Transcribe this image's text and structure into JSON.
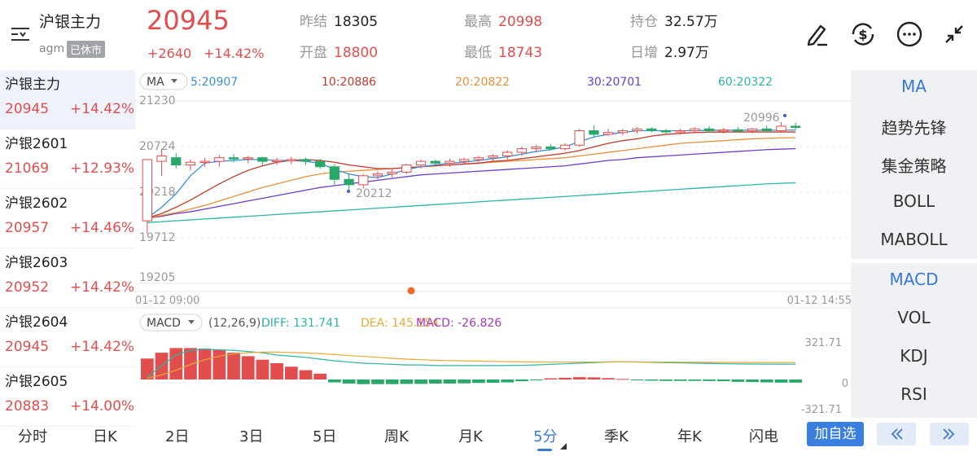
{
  "header": {
    "name": "沪银主力",
    "code": "agm",
    "status": "已休市",
    "price": "20945",
    "change": "+2640",
    "change_pct": "+14.42%",
    "prev_settle_label": "昨结",
    "prev_settle": "18305",
    "open_label": "开盘",
    "open": "18800",
    "high_label": "最高",
    "high": "20998",
    "low_label": "最低",
    "low": "18743",
    "oi_label": "持仓",
    "oi": "32.57万",
    "daily_inc_label": "日增",
    "daily_inc": "2.97万",
    "icons": [
      "edit-pen-icon",
      "currency-exchange-icon",
      "more-dots-icon",
      "collapse-arrows-icon"
    ]
  },
  "contracts": [
    {
      "name": "沪银主力",
      "price": "20945",
      "pct": "+14.42%"
    },
    {
      "name": "沪银2601",
      "price": "21069",
      "pct": "+12.93%"
    },
    {
      "name": "沪银2602",
      "price": "20957",
      "pct": "+14.46%"
    },
    {
      "name": "沪银2603",
      "price": "20952",
      "pct": "+14.42%"
    },
    {
      "name": "沪银2604",
      "price": "20945",
      "pct": "+14.42%"
    },
    {
      "name": "沪银2605",
      "price": "20883",
      "pct": "+14.00%"
    }
  ],
  "indicators": {
    "main": [
      "MA",
      "趋势先锋",
      "集金策略",
      "BOLL",
      "MABOLL"
    ],
    "sub": [
      "MACD",
      "VOL",
      "KDJ",
      "RSI"
    ]
  },
  "tabs": [
    "分时",
    "日K",
    "2日",
    "3日",
    "5日",
    "周K",
    "月K",
    "5分",
    "季K",
    "年K",
    "闪电"
  ],
  "selected_tab": "5分",
  "add_watch": "加自选",
  "nav": {
    "prev": "<<",
    "next": ">>"
  },
  "colors": {
    "up": "#e24d4d",
    "down": "#2aa76a",
    "accent": "#3a78d6",
    "ma5": "#3a8fd6",
    "ma10": "#c0392b",
    "ma20": "#e8903a",
    "ma30": "#6a3fc9",
    "ma60": "#2bb5a5",
    "dea": "#e8a93a",
    "macd": "#a03ac0"
  },
  "chart_data": {
    "type": "candlestick",
    "main": {
      "ma_selector": "MA",
      "ma_labels": [
        "5:20907",
        "10:20886",
        "20:20822",
        "30:20701",
        "60:20322"
      ],
      "y_ticks": [
        "21230",
        "20724",
        "20218",
        "19712",
        "19205"
      ],
      "ylim": [
        19205,
        21230
      ],
      "x_labels": [
        "01-12 09:00",
        "01-12 14:55"
      ],
      "max_label": "20996",
      "min_label": "20212",
      "candles": [
        [
          19900,
          20580,
          19760,
          20580
        ],
        [
          20560,
          20700,
          20400,
          20620
        ],
        [
          20600,
          20650,
          20480,
          20520
        ],
        [
          20520,
          20580,
          20460,
          20550
        ],
        [
          20550,
          20600,
          20500,
          20560
        ],
        [
          20560,
          20630,
          20500,
          20600
        ],
        [
          20600,
          20640,
          20550,
          20590
        ],
        [
          20590,
          20620,
          20540,
          20600
        ],
        [
          20600,
          20610,
          20520,
          20560
        ],
        [
          20560,
          20600,
          20520,
          20570
        ],
        [
          20570,
          20610,
          20530,
          20580
        ],
        [
          20580,
          20600,
          20520,
          20560
        ],
        [
          20560,
          20590,
          20480,
          20500
        ],
        [
          20500,
          20530,
          20300,
          20360
        ],
        [
          20360,
          20420,
          20212,
          20300
        ],
        [
          20300,
          20420,
          20260,
          20400
        ],
        [
          20400,
          20450,
          20360,
          20420
        ],
        [
          20420,
          20480,
          20380,
          20440
        ],
        [
          20440,
          20530,
          20420,
          20520
        ],
        [
          20520,
          20580,
          20480,
          20560
        ],
        [
          20560,
          20580,
          20520,
          20540
        ],
        [
          20540,
          20590,
          20500,
          20560
        ],
        [
          20560,
          20600,
          20530,
          20580
        ],
        [
          20580,
          20620,
          20550,
          20600
        ],
        [
          20600,
          20640,
          20560,
          20620
        ],
        [
          20620,
          20680,
          20580,
          20660
        ],
        [
          20660,
          20720,
          20620,
          20700
        ],
        [
          20700,
          20740,
          20660,
          20720
        ],
        [
          20720,
          20750,
          20680,
          20700
        ],
        [
          20700,
          20760,
          20680,
          20740
        ],
        [
          20740,
          20920,
          20720,
          20900
        ],
        [
          20900,
          20960,
          20820,
          20860
        ],
        [
          20860,
          20920,
          20840,
          20880
        ],
        [
          20880,
          20920,
          20850,
          20900
        ],
        [
          20900,
          20940,
          20870,
          20920
        ],
        [
          20920,
          20940,
          20880,
          20900
        ],
        [
          20900,
          20920,
          20870,
          20890
        ],
        [
          20890,
          20920,
          20860,
          20900
        ],
        [
          20900,
          20940,
          20870,
          20920
        ],
        [
          20920,
          20950,
          20880,
          20900
        ],
        [
          20900,
          20930,
          20870,
          20910
        ],
        [
          20910,
          20940,
          20880,
          20900
        ],
        [
          20900,
          20930,
          20870,
          20920
        ],
        [
          20920,
          20960,
          20880,
          20900
        ],
        [
          20900,
          20996,
          20880,
          20950
        ],
        [
          20950,
          20990,
          20910,
          20945
        ]
      ],
      "ma5": [
        19930,
        20050,
        20200,
        20400,
        20540,
        20560,
        20570,
        20580,
        20580,
        20570,
        20570,
        20560,
        20540,
        20470,
        20420,
        20390,
        20380,
        20420,
        20470,
        20500,
        20520,
        20540,
        20550,
        20570,
        20590,
        20610,
        20640,
        20670,
        20690,
        20720,
        20780,
        20830,
        20860,
        20880,
        20900,
        20900,
        20900,
        20900,
        20900,
        20905,
        20905,
        20905,
        20905,
        20906,
        20906,
        20907
      ],
      "ma10": [
        19930,
        19980,
        20050,
        20130,
        20220,
        20310,
        20390,
        20460,
        20510,
        20550,
        20570,
        20580,
        20570,
        20550,
        20520,
        20500,
        20480,
        20480,
        20490,
        20500,
        20510,
        20520,
        20530,
        20540,
        20560,
        20570,
        20590,
        20610,
        20630,
        20650,
        20680,
        20720,
        20760,
        20790,
        20810,
        20840,
        20860,
        20870,
        20880,
        20885,
        20885,
        20886,
        20886,
        20886,
        20886,
        20886
      ],
      "ma20": [
        19930,
        19960,
        19990,
        20030,
        20070,
        20120,
        20170,
        20220,
        20270,
        20310,
        20350,
        20390,
        20420,
        20440,
        20450,
        20460,
        20470,
        20480,
        20490,
        20500,
        20510,
        20520,
        20530,
        20540,
        20550,
        20560,
        20570,
        20580,
        20590,
        20600,
        20620,
        20640,
        20660,
        20680,
        20700,
        20720,
        20740,
        20760,
        20770,
        20780,
        20790,
        20800,
        20810,
        20815,
        20820,
        20822
      ],
      "ma30": [
        19930,
        19950,
        19980,
        20000,
        20030,
        20060,
        20090,
        20120,
        20150,
        20180,
        20210,
        20240,
        20270,
        20290,
        20310,
        20330,
        20350,
        20370,
        20390,
        20410,
        20420,
        20430,
        20440,
        20450,
        20460,
        20470,
        20480,
        20490,
        20500,
        20510,
        20530,
        20550,
        20570,
        20580,
        20600,
        20610,
        20620,
        20630,
        20640,
        20650,
        20660,
        20670,
        20680,
        20690,
        20695,
        20701
      ],
      "ma60": [
        19880,
        19890,
        19900,
        19910,
        19920,
        19930,
        19940,
        19950,
        19960,
        19970,
        19980,
        19990,
        20000,
        20010,
        20020,
        20030,
        20040,
        20050,
        20060,
        20070,
        20080,
        20090,
        20100,
        20110,
        20120,
        20130,
        20140,
        20150,
        20160,
        20170,
        20180,
        20190,
        20200,
        20210,
        20220,
        20230,
        20240,
        20250,
        20260,
        20270,
        20280,
        20290,
        20300,
        20310,
        20316,
        20322
      ]
    },
    "macd": {
      "selector": "MACD",
      "params": "(12,26,9):",
      "diff_label": "DIFF: 131.741",
      "dea_label": "DEA: 145.154",
      "macd_label": "MACD: -26.826",
      "y_ticks": [
        "321.71",
        "0",
        "-321.71"
      ],
      "ylim": [
        -321.71,
        321.71
      ],
      "bars": [
        180,
        230,
        270,
        270,
        265,
        255,
        230,
        200,
        170,
        140,
        110,
        80,
        50,
        -25,
        -35,
        -40,
        -40,
        -40,
        -38,
        -38,
        -35,
        -35,
        -33,
        -30,
        -28,
        -25,
        -15,
        -5,
        10,
        15,
        20,
        18,
        12,
        5,
        -5,
        -10,
        -12,
        -12,
        -12,
        -13,
        -15,
        -20,
        -22,
        -25,
        -27,
        -27
      ],
      "diff": [
        20,
        120,
        210,
        250,
        260,
        255,
        250,
        240,
        230,
        210,
        200,
        190,
        175,
        160,
        150,
        140,
        135,
        130,
        125,
        125,
        120,
        120,
        120,
        120,
        120,
        120,
        122,
        125,
        130,
        135,
        140,
        145,
        150,
        152,
        150,
        148,
        145,
        143,
        140,
        138,
        135,
        134,
        133,
        132,
        131,
        131.7
      ],
      "dea": [
        10,
        40,
        80,
        130,
        170,
        200,
        220,
        230,
        235,
        235,
        232,
        228,
        222,
        215,
        205,
        198,
        190,
        182,
        175,
        170,
        165,
        162,
        160,
        158,
        155,
        153,
        152,
        151,
        150,
        150,
        150,
        150,
        152,
        152,
        151,
        150,
        150,
        149,
        149,
        148,
        147,
        147,
        146,
        146,
        145,
        145.2
      ]
    }
  }
}
